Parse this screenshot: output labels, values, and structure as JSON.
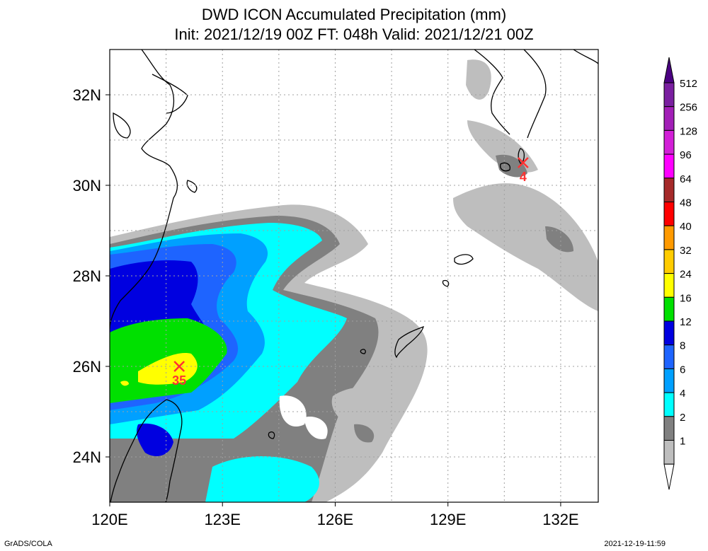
{
  "title": "DWD ICON Accumulated Precipitation (mm)",
  "subtitle": "Init: 2021/12/19 00Z  FT: 048h  Valid: 2021/12/21 00Z",
  "credit": "GrADS/COLA",
  "timestamp": "2021-12-19-11:59",
  "lon_labels": [
    "120E",
    "123E",
    "126E",
    "129E",
    "132E"
  ],
  "lat_labels": [
    "32N",
    "30N",
    "28N",
    "26N",
    "24N"
  ],
  "extent": {
    "lon_min": 120,
    "lon_max": 133,
    "lat_min": 23,
    "lat_max": 33
  },
  "legend": {
    "levels": [
      "512",
      "256",
      "128",
      "96",
      "64",
      "48",
      "40",
      "32",
      "24",
      "16",
      "12",
      "8",
      "6",
      "4",
      "2",
      "1"
    ],
    "colors": [
      "#7a1fa0",
      "#a21fb7",
      "#d21fd7",
      "#ff00ff",
      "#a52a2a",
      "#ff0000",
      "#ff9a00",
      "#ffcc00",
      "#ffff00",
      "#00e000",
      "#0000e0",
      "#1e64ff",
      "#00a0ff",
      "#00ffff",
      "#808080",
      "#bebebe"
    ],
    "top_color": "#4b0082",
    "bottom_color": "#ffffff"
  },
  "markers": [
    {
      "label": "35",
      "lon": 121.85,
      "lat": 26.0
    },
    {
      "label": "4",
      "lon": 131.0,
      "lat": 30.5
    }
  ],
  "colors": {
    "grid": "#a0a0a0",
    "coast": "#000000",
    "marker": "#ff3333"
  }
}
